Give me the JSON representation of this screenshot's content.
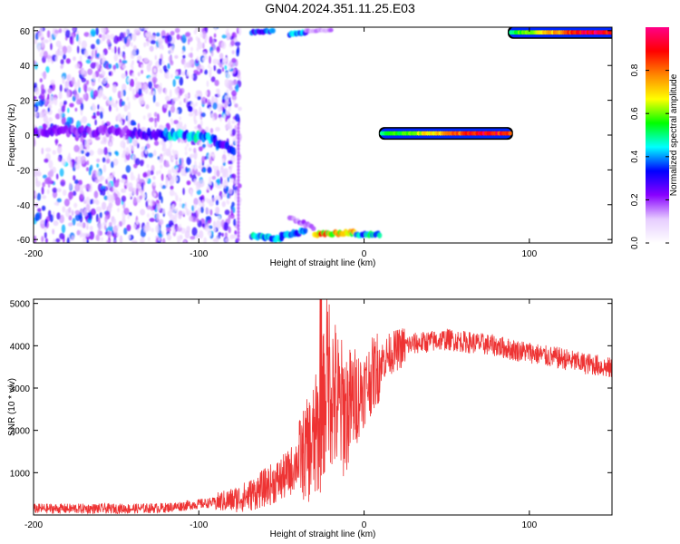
{
  "title": "GN04.2024.351.11.25.E03",
  "chart_data": [
    {
      "type": "heatmap",
      "xlabel": "Height of straight line (km)",
      "ylabel": "Frequency (Hz)",
      "xlim": [
        -200,
        150
      ],
      "ylim": [
        -62,
        62
      ],
      "x_ticks": [
        -200,
        -100,
        0,
        100
      ],
      "y_ticks": [
        -60,
        -40,
        -20,
        0,
        20,
        40,
        60
      ],
      "colorbar": {
        "label": "Normalized spectral amplitude",
        "range": [
          0,
          1
        ],
        "ticks": [
          "0.0",
          "0.2",
          "0.4",
          "0.6",
          "0.8"
        ],
        "colors": [
          "#ffffff",
          "#e6ccff",
          "#8800ff",
          "#0000ff",
          "#00ffff",
          "#00ff00",
          "#ffff00",
          "#ff8800",
          "#ff0000",
          "#ff0088"
        ]
      },
      "features": [
        {
          "name": "noise band",
          "x_range": [
            -200,
            -75
          ],
          "frequency": 0,
          "amplitude": 0.3
        },
        {
          "name": "upper band",
          "x_range": [
            -65,
            -20
          ],
          "frequency": 60,
          "amplitude": 0.35
        },
        {
          "name": "lower band",
          "x_range": [
            -75,
            10
          ],
          "frequency": -57,
          "amplitude": 0.45
        },
        {
          "name": "central tone",
          "x_range": [
            10,
            90
          ],
          "frequency": 1,
          "amplitude": 0.95
        },
        {
          "name": "upper tone",
          "x_range": [
            88,
            150
          ],
          "frequency": 59,
          "amplitude": 0.97
        }
      ]
    },
    {
      "type": "line",
      "xlabel": "Height of straight line (km)",
      "ylabel": "SNR (10 * v/v)",
      "xlim": [
        -200,
        150
      ],
      "ylim": [
        0,
        5100
      ],
      "x_ticks": [
        -200,
        -100,
        0,
        100
      ],
      "y_ticks": [
        1000,
        2000,
        3000,
        4000,
        5000
      ],
      "color": "#ee3333",
      "series": [
        {
          "x": [
            -200,
            -180,
            -160,
            -140,
            -120,
            -100,
            -90,
            -80,
            -70,
            -60,
            -50,
            -45,
            -40,
            -35,
            -30,
            -25,
            -22,
            -18,
            -15,
            -10,
            -5,
            0,
            5,
            10,
            15,
            20,
            25,
            30,
            40,
            50,
            60,
            70,
            80,
            90,
            100,
            110,
            120,
            130,
            140,
            150
          ],
          "values": [
            150,
            150,
            150,
            150,
            170,
            260,
            300,
            350,
            450,
            650,
            850,
            1000,
            1300,
            1500,
            1700,
            2400,
            3500,
            2800,
            2500,
            2500,
            2800,
            3000,
            3300,
            3600,
            3800,
            3900,
            4000,
            4050,
            4100,
            4150,
            4100,
            4050,
            4000,
            3900,
            3850,
            3750,
            3700,
            3600,
            3550,
            3450
          ]
        }
      ]
    }
  ]
}
